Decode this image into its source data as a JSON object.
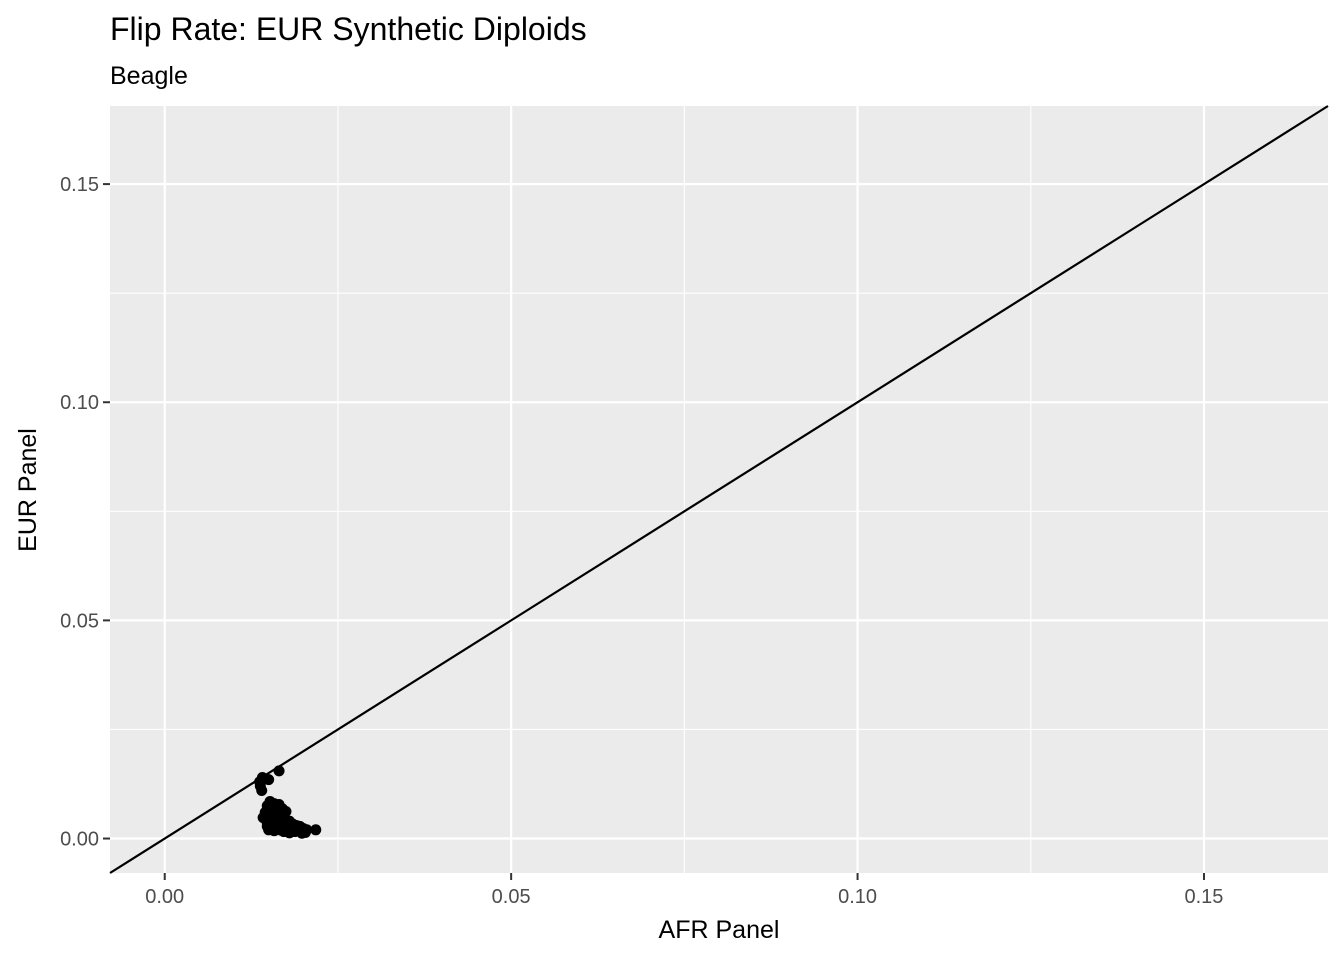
{
  "chart_data": {
    "type": "scatter",
    "title": "Flip Rate: EUR Synthetic Diploids",
    "subtitle": "Beagle",
    "xlabel": "AFR Panel",
    "ylabel": "EUR Panel",
    "xlim": [
      -0.0079,
      0.1679
    ],
    "ylim": [
      -0.0079,
      0.1679
    ],
    "xticks": [
      0.0,
      0.05,
      0.1,
      0.15
    ],
    "xtick_labels": [
      "0.00",
      "0.05",
      "0.10",
      "0.15"
    ],
    "yticks": [
      0.0,
      0.05,
      0.1,
      0.15
    ],
    "ytick_labels": [
      "0.00",
      "0.05",
      "0.10",
      "0.15"
    ],
    "grid": true,
    "reference_line": {
      "type": "identity",
      "slope": 1,
      "intercept": 0
    },
    "colors": {
      "panel_bg": "#ebebeb",
      "grid": "#ffffff",
      "point": "#000000",
      "line": "#000000"
    },
    "series": [
      {
        "x": [
          0.0165,
          0.0141,
          0.0137,
          0.014,
          0.015,
          0.0138,
          0.0152,
          0.0158,
          0.0165,
          0.0148,
          0.017,
          0.0155,
          0.016,
          0.0145,
          0.0175,
          0.0162,
          0.015,
          0.0168,
          0.0158,
          0.0142,
          0.0165,
          0.0172,
          0.015,
          0.0156,
          0.018,
          0.016,
          0.0148,
          0.0175,
          0.0185,
          0.0165,
          0.019,
          0.0178,
          0.0155,
          0.017,
          0.0195,
          0.0185,
          0.016,
          0.0175,
          0.02,
          0.019,
          0.0165,
          0.0182,
          0.0205,
          0.015,
          0.0168,
          0.0195,
          0.0158,
          0.0178,
          0.0188,
          0.0172,
          0.0218,
          0.0203,
          0.018,
          0.0152,
          0.0163,
          0.0148,
          0.0198
        ],
        "y": [
          0.0155,
          0.014,
          0.013,
          0.011,
          0.0135,
          0.012,
          0.0085,
          0.008,
          0.0078,
          0.0075,
          0.0068,
          0.007,
          0.0065,
          0.006,
          0.0062,
          0.0058,
          0.0055,
          0.0052,
          0.005,
          0.0048,
          0.0045,
          0.0045,
          0.0042,
          0.004,
          0.004,
          0.0038,
          0.0035,
          0.0035,
          0.0033,
          0.0032,
          0.003,
          0.003,
          0.003,
          0.0028,
          0.0028,
          0.0026,
          0.0025,
          0.0024,
          0.0023,
          0.0022,
          0.0022,
          0.0021,
          0.002,
          0.002,
          0.0019,
          0.0018,
          0.0018,
          0.0017,
          0.0016,
          0.0016,
          0.002,
          0.0014,
          0.0013,
          0.0025,
          0.003,
          0.0028,
          0.0012
        ]
      }
    ]
  }
}
